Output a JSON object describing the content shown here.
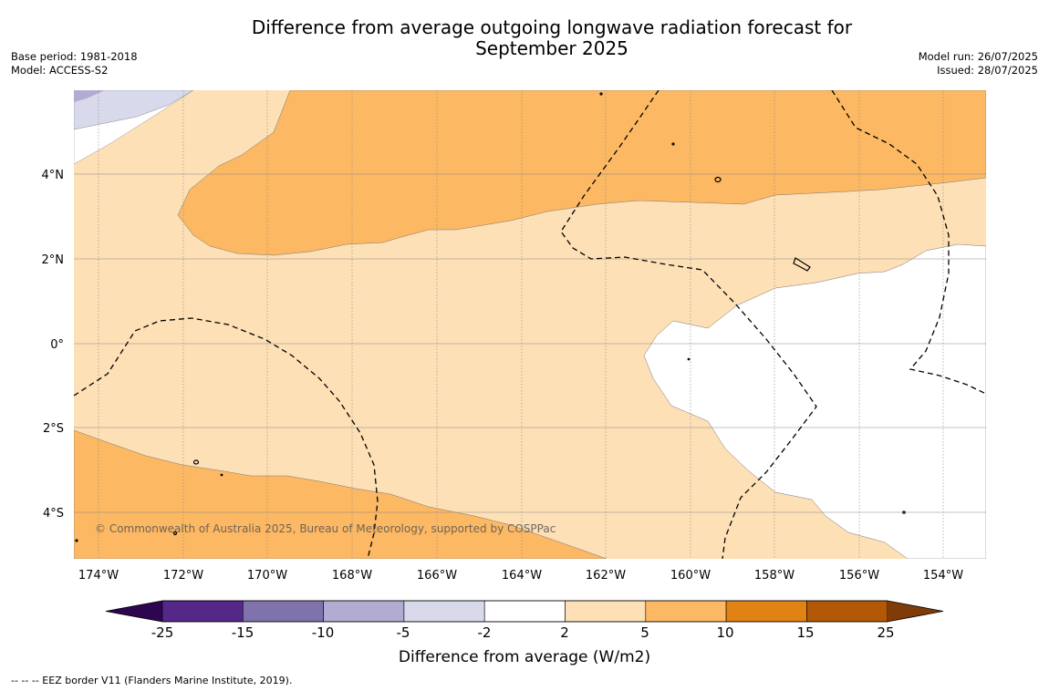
{
  "title": {
    "line1": "Difference from average outgoing longwave radiation forecast for",
    "line2": "September 2025"
  },
  "meta_left": {
    "base_period": "Base period: 1981-2018",
    "model": "Model: ACCESS-S2"
  },
  "meta_right": {
    "model_run": "Model run: 26/07/2025",
    "issued": "Issued: 28/07/2025"
  },
  "map": {
    "lon_ticks": [
      "174°W",
      "172°W",
      "170°W",
      "168°W",
      "166°W",
      "164°W",
      "162°W",
      "160°W",
      "158°W",
      "156°W",
      "154°W"
    ],
    "lat_ticks": [
      "4°N",
      "2°N",
      "0°",
      "2°S",
      "4°S"
    ],
    "copyright": "© Commonwealth of Australia 2025, Bureau of Meteorology, supported by COSPPac"
  },
  "colorbar": {
    "label": "Difference from average (W/m2)",
    "ticks": [
      "-25",
      "-15",
      "-10",
      "-5",
      "-2",
      "2",
      "5",
      "10",
      "15",
      "25"
    ],
    "colors": [
      "#2d0650",
      "#542788",
      "#8073ac",
      "#b2abd2",
      "#d8daeb",
      "#ffffff",
      "#fee0b6",
      "#fdb863",
      "#e08214",
      "#b35806",
      "#7f3b08"
    ]
  },
  "footnote": "--  --  -- EEZ border V11 (Flanders Marine Institute, 2019)."
}
